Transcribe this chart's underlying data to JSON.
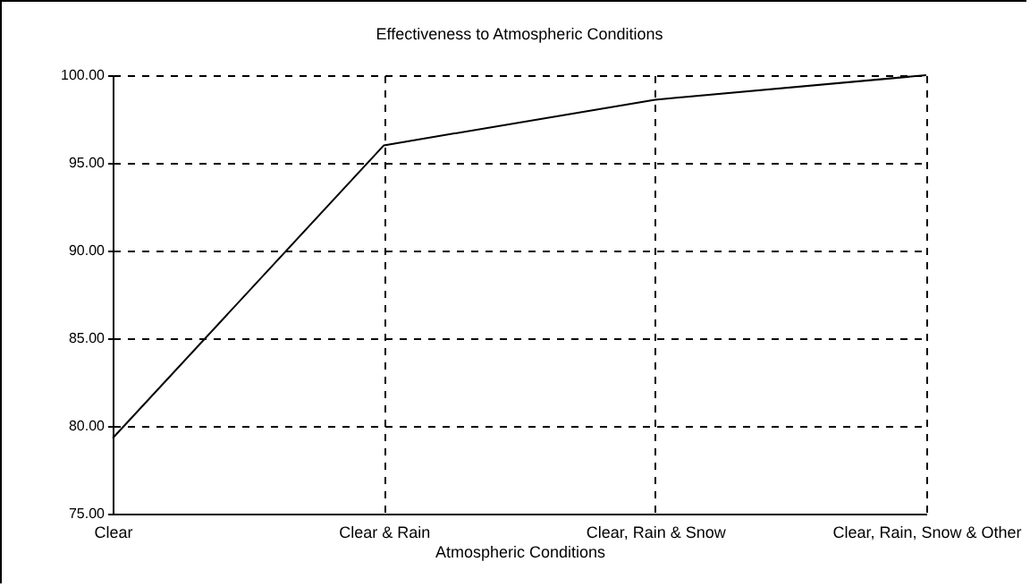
{
  "chart_data": {
    "type": "line",
    "title": "Effectiveness to Atmospheric Conditions",
    "xlabel": "Atmospheric Conditions",
    "categories": [
      "Clear",
      "Clear & Rain",
      "Clear, Rain & Snow",
      "Clear, Rain, Snow & Other"
    ],
    "series": [
      {
        "color": "#000000",
        "values": [
          79.3,
          96.0,
          98.6,
          100.0
        ]
      }
    ],
    "ylim": [
      75,
      100
    ],
    "yticks": [
      {
        "value": 75,
        "label": "75.00"
      },
      {
        "value": 80,
        "label": "80.00"
      },
      {
        "value": 85,
        "label": "85.00"
      },
      {
        "value": 90,
        "label": "90.00"
      },
      {
        "value": 95,
        "label": "95.00"
      },
      {
        "value": 100,
        "label": "100.00"
      }
    ],
    "grid": true,
    "marker": "none",
    "line_style": "solid",
    "legend": false
  }
}
